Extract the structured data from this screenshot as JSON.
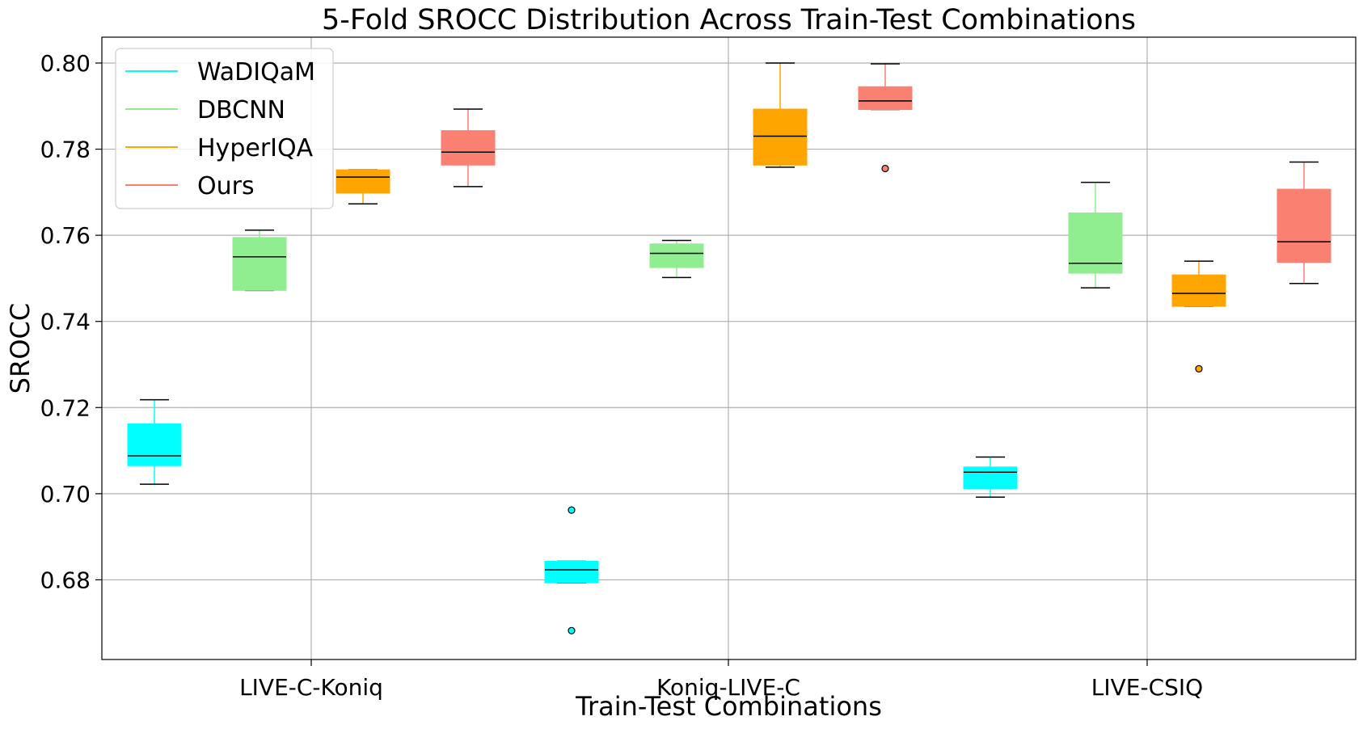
{
  "chart_data": {
    "type": "box",
    "title": "5-Fold SROCC Distribution Across Train-Test Combinations",
    "xlabel": "Train-Test Combinations",
    "ylabel": "SROCC",
    "ylim": [
      0.6615,
      0.806
    ],
    "yticks": [
      0.68,
      0.7,
      0.72,
      0.74,
      0.76,
      0.78,
      0.8
    ],
    "ytick_labels": [
      "0.68",
      "0.70",
      "0.72",
      "0.74",
      "0.76",
      "0.78",
      "0.80"
    ],
    "categories": [
      "LIVE-C-Koniq",
      "Koniq-LIVE-C",
      "LIVE-CSIQ"
    ],
    "grid": true,
    "legend_position": "top-left",
    "series": [
      {
        "name": "WaDIQaM",
        "color": "#00FFFF",
        "boxes": [
          {
            "whisker_low": 0.7022,
            "q1": 0.7065,
            "median": 0.7088,
            "q3": 0.7162,
            "whisker_high": 0.7218,
            "outliers": []
          },
          {
            "whisker_low": 0.6793,
            "q1": 0.6793,
            "median": 0.6823,
            "q3": 0.6843,
            "whisker_high": 0.6843,
            "outliers": [
              0.6962,
              0.6682
            ]
          },
          {
            "whisker_low": 0.6992,
            "q1": 0.7012,
            "median": 0.705,
            "q3": 0.7062,
            "whisker_high": 0.7085,
            "outliers": []
          }
        ]
      },
      {
        "name": "DBCNN",
        "color": "#90EE90",
        "boxes": [
          {
            "whisker_low": 0.7472,
            "q1": 0.7472,
            "median": 0.755,
            "q3": 0.7595,
            "whisker_high": 0.7612,
            "outliers": []
          },
          {
            "whisker_low": 0.7502,
            "q1": 0.7525,
            "median": 0.7558,
            "q3": 0.758,
            "whisker_high": 0.7588,
            "outliers": []
          },
          {
            "whisker_low": 0.7478,
            "q1": 0.7512,
            "median": 0.7535,
            "q3": 0.7652,
            "whisker_high": 0.7723,
            "outliers": []
          }
        ]
      },
      {
        "name": "HyperIQA",
        "color": "#FFA500",
        "boxes": [
          {
            "whisker_low": 0.7673,
            "q1": 0.7698,
            "median": 0.7735,
            "q3": 0.7752,
            "whisker_high": 0.7752,
            "outliers": []
          },
          {
            "whisker_low": 0.7758,
            "q1": 0.7763,
            "median": 0.783,
            "q3": 0.7893,
            "whisker_high": 0.8,
            "outliers": []
          },
          {
            "whisker_low": 0.7435,
            "q1": 0.7435,
            "median": 0.7465,
            "q3": 0.7508,
            "whisker_high": 0.754,
            "outliers": [
              0.729
            ]
          }
        ]
      },
      {
        "name": "Ours",
        "color": "#FA8072",
        "boxes": [
          {
            "whisker_low": 0.7713,
            "q1": 0.7763,
            "median": 0.7793,
            "q3": 0.7843,
            "whisker_high": 0.7893,
            "outliers": []
          },
          {
            "whisker_low": 0.7892,
            "q1": 0.7892,
            "median": 0.7912,
            "q3": 0.7945,
            "whisker_high": 0.7998,
            "outliers": [
              0.7755
            ]
          },
          {
            "whisker_low": 0.7488,
            "q1": 0.7537,
            "median": 0.7585,
            "q3": 0.7707,
            "whisker_high": 0.777,
            "outliers": []
          }
        ]
      }
    ]
  }
}
